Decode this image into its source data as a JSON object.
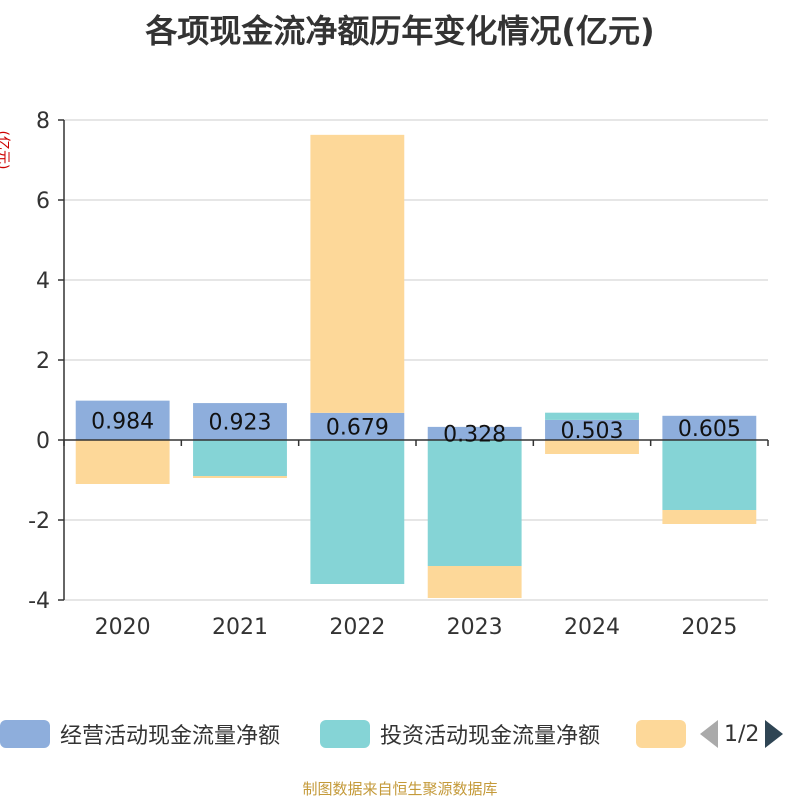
{
  "title": "各项现金流净额历年变化情况(亿元)",
  "unit_label": "(亿元)",
  "source": "制图数据来自恒生聚源数据库",
  "pager": {
    "text": "1/2"
  },
  "colors": {
    "operating": "#8eaedc",
    "investing": "#85d4d6",
    "financing": "#fdd899"
  },
  "chart_data": {
    "type": "bar",
    "stacked": true,
    "title": "各项现金流净额历年变化情况(亿元)",
    "ylabel": "(亿元)",
    "ylim": [
      -4,
      8
    ],
    "yticks": [
      -4,
      -2,
      0,
      2,
      4,
      6,
      8
    ],
    "categories": [
      "2020",
      "2021",
      "2022",
      "2023",
      "2024",
      "2025"
    ],
    "series": [
      {
        "name": "经营活动现金流量净额",
        "values": [
          0.984,
          0.923,
          0.679,
          0.328,
          0.503,
          0.605
        ],
        "labels": [
          "0.984",
          "0.923",
          "0.679",
          "0.328",
          "0.503",
          "0.605"
        ]
      },
      {
        "name": "投资活动现金流量净额",
        "values": [
          0,
          -0.9,
          -3.6,
          -3.15,
          0.18,
          -1.75
        ]
      },
      {
        "name": "",
        "values": [
          -1.1,
          -0.05,
          6.95,
          -0.8,
          -0.35,
          -0.35
        ]
      }
    ],
    "legend": [
      "经营活动现金流量净额",
      "投资活动现金流量净额",
      ""
    ]
  }
}
